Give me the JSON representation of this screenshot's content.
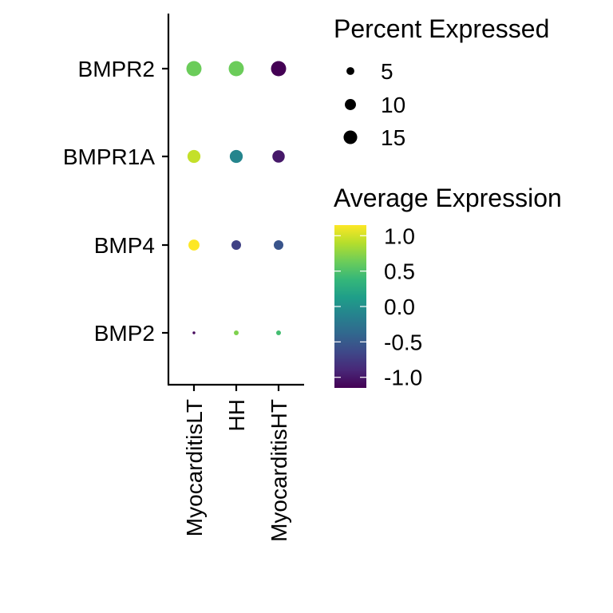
{
  "chart_data": {
    "type": "dot",
    "genes": [
      "BMPR2",
      "BMPR1A",
      "BMP4",
      "BMP2"
    ],
    "groups": [
      "MyocarditisLT",
      "HH",
      "MyocarditisHT"
    ],
    "points": [
      {
        "gene": "BMPR2",
        "group": "MyocarditisLT",
        "pct_expressed": 15,
        "avg_expression": 0.63
      },
      {
        "gene": "BMPR2",
        "group": "HH",
        "pct_expressed": 15,
        "avg_expression": 0.63
      },
      {
        "gene": "BMPR2",
        "group": "MyocarditisHT",
        "pct_expressed": 15,
        "avg_expression": -1.15
      },
      {
        "gene": "BMPR1A",
        "group": "MyocarditisLT",
        "pct_expressed": 11,
        "avg_expression": 0.95
      },
      {
        "gene": "BMPR1A",
        "group": "HH",
        "pct_expressed": 11,
        "avg_expression": -0.1
      },
      {
        "gene": "BMPR1A",
        "group": "MyocarditisHT",
        "pct_expressed": 10,
        "avg_expression": -1.0
      },
      {
        "gene": "BMP4",
        "group": "MyocarditisLT",
        "pct_expressed": 8,
        "avg_expression": 1.15
      },
      {
        "gene": "BMP4",
        "group": "HH",
        "pct_expressed": 6,
        "avg_expression": -0.7
      },
      {
        "gene": "BMP4",
        "group": "MyocarditisHT",
        "pct_expressed": 6,
        "avg_expression": -0.55
      },
      {
        "gene": "BMP2",
        "group": "MyocarditisLT",
        "pct_expressed": 0.5,
        "avg_expression": -1.1
      },
      {
        "gene": "BMP2",
        "group": "HH",
        "pct_expressed": 1.5,
        "avg_expression": 0.7
      },
      {
        "gene": "BMP2",
        "group": "MyocarditisHT",
        "pct_expressed": 1.5,
        "avg_expression": 0.45
      }
    ],
    "size_legend": {
      "title": "Percent Expressed",
      "values": [
        5,
        10,
        15
      ],
      "labels": [
        "5",
        "10",
        "15"
      ]
    },
    "color_legend": {
      "title": "Average Expression",
      "range": [
        -1.15,
        1.15
      ],
      "ticks": [
        1.0,
        0.5,
        0.0,
        -0.5,
        -1.0
      ],
      "labels": [
        "1.0",
        "0.5",
        "0.0",
        "-0.5",
        "-1.0"
      ],
      "palette": "viridis"
    },
    "title": "",
    "xlabel": "",
    "ylabel": ""
  },
  "colors": {
    "viridis": [
      "#440154",
      "#482878",
      "#3E4989",
      "#31688E",
      "#26828E",
      "#1F9E89",
      "#35B779",
      "#6DCD59",
      "#B4DE2C",
      "#FDE725"
    ]
  }
}
